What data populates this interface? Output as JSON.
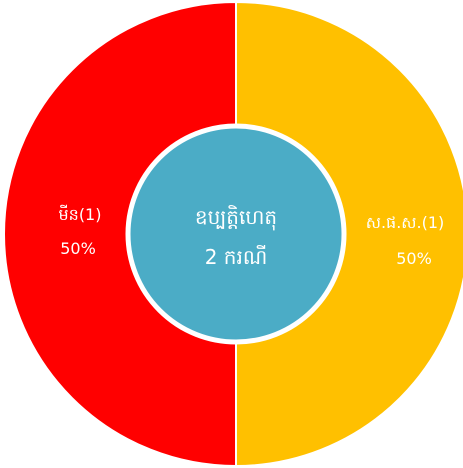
{
  "chart_data": {
    "type": "pie",
    "variant": "donut",
    "center_label": {
      "line1": "ឧប្បត្តិហេតុ",
      "line2": "2 ករណី"
    },
    "slices": [
      {
        "label": "ស.ផ.ស.(1)",
        "value": 50,
        "percent_label": "50%",
        "color": "#ffc000"
      },
      {
        "label": "មីន(1)",
        "value": 50,
        "percent_label": "50%",
        "color": "#ff0000"
      }
    ],
    "center_color": "#4bacc6",
    "divider_color": "#ffffff"
  }
}
